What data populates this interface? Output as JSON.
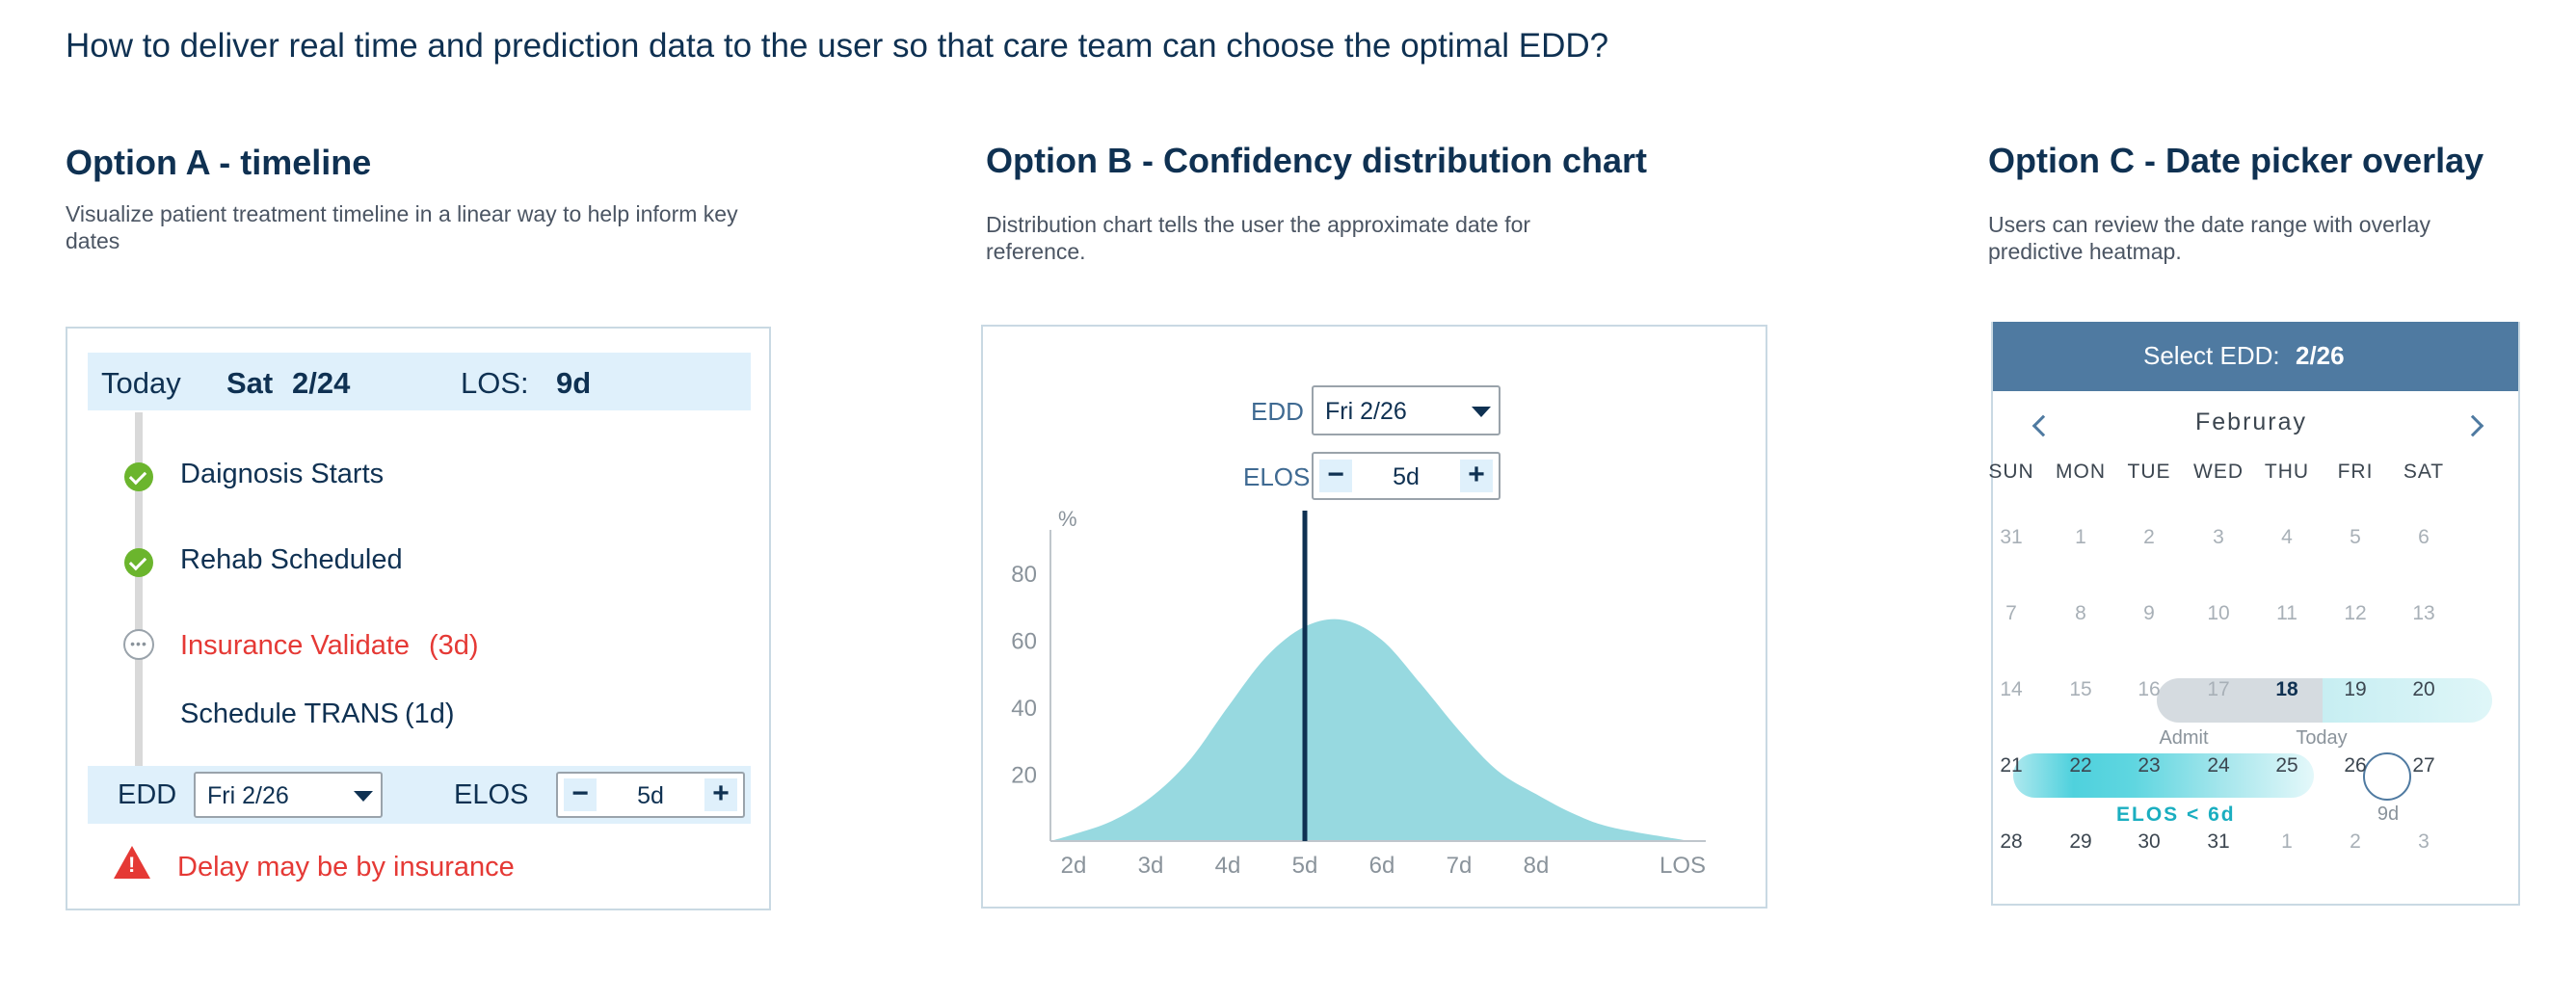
{
  "question": "How to deliver real time and prediction data to the user so that care team can choose the optimal EDD?",
  "option_a": {
    "title": "Option A - timeline",
    "description": "Visualize patient treatment timeline in a linear way to help inform key dates",
    "today_label": "Today",
    "today_day": "Sat",
    "today_date": "2/24",
    "los_label": "LOS:",
    "los_value": "9d",
    "steps": [
      {
        "label": "Daignosis Starts",
        "status": "done"
      },
      {
        "label": "Rehab Scheduled",
        "status": "done"
      },
      {
        "label": "Insurance Validate",
        "duration": "(3d)",
        "status": "pending"
      },
      {
        "label": "Schedule TRANS",
        "duration": "(1d)",
        "status": "upcoming"
      }
    ],
    "edd_label": "EDD",
    "edd_value": "Fri 2/26",
    "elos_label": "ELOS",
    "elos_value": "5d",
    "minus": "−",
    "plus": "+",
    "warning_icon": "!",
    "warning": "Delay may be by insurance"
  },
  "option_b": {
    "title": "Option B - Confidency distribution chart",
    "description": "Distribution chart tells the user the approximate date for reference.",
    "edd_label": "EDD",
    "edd_value": "Fri 2/26",
    "elos_label": "ELOS",
    "elos_value": "5d",
    "minus": "−",
    "plus": "+"
  },
  "chart_data": {
    "type": "area",
    "ylabel": "%",
    "xlabel": "",
    "y_ticks": [
      "80",
      "60",
      "40",
      "20"
    ],
    "x_ticks": [
      "2d",
      "3d",
      "4d",
      "5d",
      "6d",
      "7d",
      "8d",
      "LOS"
    ],
    "x_values": [
      1.7,
      2,
      2.5,
      3,
      3.5,
      4,
      4.5,
      5,
      5.5,
      6,
      6.5,
      7,
      7.5,
      8,
      8.5,
      9,
      10
    ],
    "y_values": [
      0,
      2,
      6,
      13,
      24,
      40,
      55,
      64,
      66,
      60,
      47,
      33,
      21,
      14,
      8,
      4,
      0
    ],
    "x_range": [
      1.7,
      10.2
    ],
    "y_range": [
      0,
      90
    ],
    "selected_x": 5,
    "fill_color": "#97d9e0",
    "line_color": "#0f3152"
  },
  "option_c": {
    "title": "Option C - Date picker overlay",
    "description": "Users can review the date range with overlay predictive heatmap.",
    "header_label": "Select EDD:",
    "header_value": "2/26",
    "month": "Februray",
    "weekdays": [
      "SUN",
      "MON",
      "TUE",
      "WED",
      "THU",
      "FRI",
      "SAT"
    ],
    "weeks": [
      [
        "31",
        "1",
        "2",
        "3",
        "4",
        "5",
        "6"
      ],
      [
        "7",
        "8",
        "9",
        "10",
        "11",
        "12",
        "13"
      ],
      [
        "14",
        "15",
        "16",
        "17",
        "18",
        "19",
        "20"
      ],
      [
        "21",
        "22",
        "23",
        "24",
        "25",
        "26",
        "27"
      ],
      [
        "28",
        "29",
        "30",
        "31",
        "1",
        "2",
        "3"
      ]
    ],
    "admit_label": "Admit",
    "today_label": "Today",
    "selected_sub": "9d",
    "elos_note": "ELOS < 6d",
    "accent_color": "#1aaec0"
  }
}
